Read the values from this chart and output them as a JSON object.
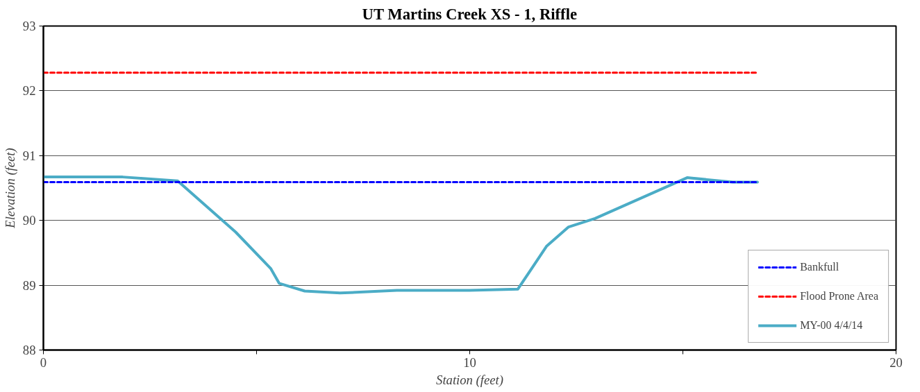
{
  "chart_data": {
    "type": "line",
    "title": "UT Martins Creek XS - 1, Riffle",
    "xlabel": "Station (feet)",
    "ylabel": "Elevation (feet)",
    "xlim": [
      0,
      20
    ],
    "xticks": [
      0,
      {
        "value": 5,
        "label": null
      },
      10,
      {
        "value": 15,
        "label": null
      },
      20
    ],
    "ylim": [
      88,
      93
    ],
    "yticks": [
      88,
      89,
      90,
      91,
      92,
      93
    ],
    "grid": "y",
    "legend": "right",
    "marker": "none",
    "series": [
      {
        "name": "Bankfull",
        "color": "#0000ff",
        "line_style": "dashed",
        "x": [
          0,
          16.75
        ],
        "values": [
          90.59,
          90.59
        ]
      },
      {
        "name": "Flood Prone Area",
        "color": "#ff0000",
        "line_style": "dashed",
        "x": [
          0,
          16.75
        ],
        "values": [
          92.28,
          92.28
        ]
      },
      {
        "name": "MY-00 4/4/14",
        "color": "#4bacc6",
        "line_style": "solid",
        "x": [
          0,
          1.86,
          3.15,
          4.51,
          5.33,
          5.53,
          6.13,
          6.96,
          8.29,
          9.99,
          11.13,
          11.8,
          12.32,
          12.94,
          15.1,
          16.17,
          16.75
        ],
        "values": [
          90.67,
          90.67,
          90.61,
          89.82,
          89.26,
          89.03,
          88.91,
          88.88,
          88.92,
          88.92,
          88.94,
          89.6,
          89.9,
          90.03,
          90.66,
          90.59,
          90.59
        ]
      }
    ]
  }
}
